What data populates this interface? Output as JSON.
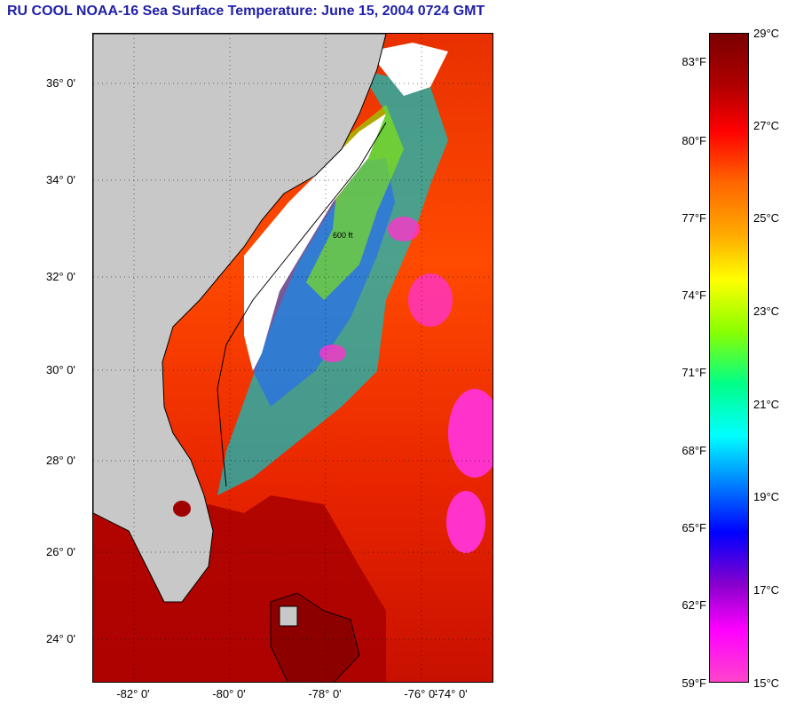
{
  "title": "RU COOL  NOAA-16  Sea Surface Temperature:  June 15, 2004 0724 GMT",
  "map": {
    "lat_labels": [
      "36° 0'",
      "34° 0'",
      "32° 0'",
      "30° 0'",
      "28° 0'",
      "26° 0'",
      "24° 0'"
    ],
    "lon_labels": [
      "-82° 0'",
      "-80° 0'",
      "-78° 0'",
      "-76° 0'",
      "-74° 0'"
    ],
    "lat_range": [
      23.0,
      37.0
    ],
    "lon_range": [
      -83.0,
      -74.6
    ],
    "land_color": "#c8c8c8",
    "cloud_color": "#ffffff",
    "contour_label": "600 ft"
  },
  "colorbar": {
    "fahrenheit_labels": [
      "83°F",
      "80°F",
      "77°F",
      "74°F",
      "71°F",
      "68°F",
      "65°F",
      "62°F",
      "59°F"
    ],
    "celsius_labels": [
      "29°C",
      "27°C",
      "25°C",
      "23°C",
      "21°C",
      "19°C",
      "17°C",
      "15°C"
    ],
    "range_c": [
      15,
      29
    ],
    "colors_top_to_bottom": [
      "#7a0000",
      "#b00000",
      "#ff0000",
      "#ff6600",
      "#ffaa00",
      "#ffff00",
      "#88ff00",
      "#00ff88",
      "#00ffff",
      "#0088ff",
      "#0000ff",
      "#8800cc",
      "#ff00ff",
      "#ff44cc"
    ]
  }
}
